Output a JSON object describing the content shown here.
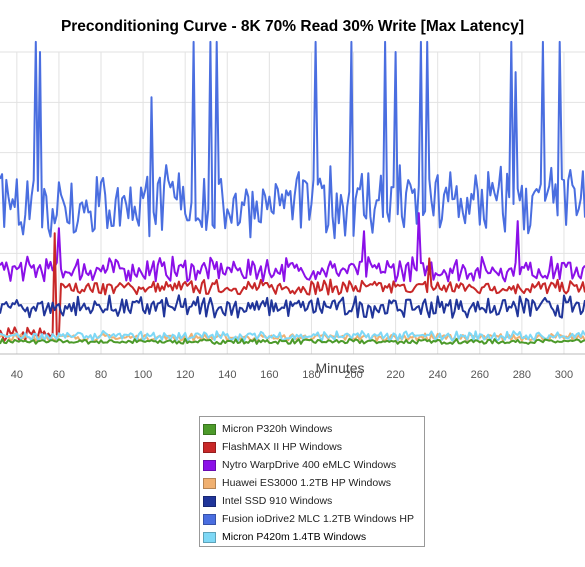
{
  "chart_data": {
    "type": "line",
    "title": "Preconditioning Curve - 8K 70% Read 30% Write [Max Latency]",
    "xlabel": "Minutes",
    "ylabel": "",
    "x_tick_labels": [
      40,
      60,
      80,
      100,
      120,
      140,
      160,
      180,
      200,
      220,
      240,
      260,
      280,
      300
    ],
    "xlim": [
      32,
      310
    ],
    "ylim": [
      0,
      300
    ],
    "grid": true,
    "legend_position": "bottom",
    "series": [
      {
        "name": "Micron P320h Windows",
        "color": "#4c9a2a",
        "level": 12,
        "noise": 2,
        "spikes": [],
        "values": []
      },
      {
        "name": "FlashMAX II HP Windows",
        "color": "#c82828",
        "level": 65,
        "noise": 6,
        "early_level": 18,
        "jump_x": 61,
        "spikes": [
          {
            "x": 58,
            "y": 120
          },
          {
            "x": 236,
            "y": 95
          }
        ],
        "values": []
      },
      {
        "name": "Nytro WarpDrive 400 eMLC Windows",
        "color": "#8b10e8",
        "level": 82,
        "noise": 10,
        "early_level": 78,
        "spikes": [
          {
            "x": 60,
            "y": 125
          },
          {
            "x": 205,
            "y": 122
          },
          {
            "x": 231,
            "y": 140
          },
          {
            "x": 278,
            "y": 132
          }
        ],
        "values": []
      },
      {
        "name": "Huawei ES3000 1.2TB HP Windows",
        "color": "#f0b070",
        "level": 16,
        "noise": 3,
        "spikes": [],
        "values": []
      },
      {
        "name": "Intel SSD 910 Windows",
        "color": "#20359a",
        "level": 45,
        "noise": 9,
        "spikes": [],
        "values": []
      },
      {
        "name": "Fusion ioDrive2 MLC 1.2TB Windows HP",
        "color": "#4a6ee0",
        "level": 145,
        "noise": 30,
        "spikes": [
          {
            "x": 49,
            "y": 310
          },
          {
            "x": 51,
            "y": 300
          },
          {
            "x": 104,
            "y": 255
          },
          {
            "x": 124,
            "y": 310
          },
          {
            "x": 132,
            "y": 310
          },
          {
            "x": 135,
            "y": 310
          },
          {
            "x": 182,
            "y": 310
          },
          {
            "x": 199,
            "y": 310
          },
          {
            "x": 215,
            "y": 310
          },
          {
            "x": 220,
            "y": 300
          },
          {
            "x": 232,
            "y": 310
          },
          {
            "x": 235,
            "y": 310
          },
          {
            "x": 275,
            "y": 310
          },
          {
            "x": 277,
            "y": 280
          },
          {
            "x": 290,
            "y": 310
          },
          {
            "x": 298,
            "y": 310
          }
        ],
        "values": []
      },
      {
        "name": "Micron P420m 1.4TB Windows",
        "color": "#7ed8f6",
        "level": 17,
        "noise": 4,
        "spikes": [],
        "values": []
      }
    ]
  }
}
